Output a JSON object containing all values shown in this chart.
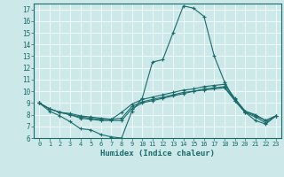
{
  "xlabel": "Humidex (Indice chaleur)",
  "xlim": [
    -0.5,
    23.5
  ],
  "ylim": [
    6,
    17.5
  ],
  "yticks": [
    6,
    7,
    8,
    9,
    10,
    11,
    12,
    13,
    14,
    15,
    16,
    17
  ],
  "xticks": [
    0,
    1,
    2,
    3,
    4,
    5,
    6,
    7,
    8,
    9,
    10,
    11,
    12,
    13,
    14,
    15,
    16,
    17,
    18,
    19,
    20,
    21,
    22,
    23
  ],
  "background_color": "#cce8e8",
  "grid_color": "#ffffff",
  "line_color": "#1a6b6b",
  "line1_x": [
    0,
    1,
    2,
    3,
    4,
    5,
    6,
    7,
    8,
    9,
    10,
    11,
    12,
    13,
    14,
    15,
    16,
    17,
    18,
    19,
    20,
    21,
    22,
    23
  ],
  "line1_y": [
    9.0,
    8.3,
    7.9,
    7.4,
    6.8,
    6.7,
    6.3,
    6.1,
    6.0,
    8.3,
    9.4,
    12.5,
    12.7,
    15.0,
    17.3,
    17.1,
    16.4,
    13.0,
    10.8,
    9.2,
    8.2,
    7.5,
    7.2,
    7.9
  ],
  "line2_x": [
    0,
    1,
    2,
    3,
    4,
    5,
    6,
    7,
    8,
    9,
    10,
    11,
    12,
    13,
    14,
    15,
    16,
    17,
    18,
    19,
    20,
    21,
    22,
    23
  ],
  "line2_y": [
    9.0,
    8.5,
    8.2,
    8.0,
    7.8,
    7.7,
    7.6,
    7.6,
    8.2,
    8.9,
    9.3,
    9.5,
    9.7,
    9.9,
    10.1,
    10.2,
    10.4,
    10.5,
    10.6,
    9.4,
    8.3,
    8.0,
    7.5,
    7.9
  ],
  "line3_x": [
    0,
    1,
    2,
    3,
    4,
    5,
    6,
    7,
    8,
    9,
    10,
    11,
    12,
    13,
    14,
    15,
    16,
    17,
    18,
    19,
    20,
    21,
    22,
    23
  ],
  "line3_y": [
    9.0,
    8.5,
    8.2,
    8.1,
    7.9,
    7.8,
    7.7,
    7.6,
    7.7,
    8.7,
    9.1,
    9.3,
    9.5,
    9.7,
    9.9,
    10.0,
    10.2,
    10.3,
    10.4,
    9.3,
    8.3,
    7.9,
    7.5,
    7.9
  ],
  "line4_x": [
    0,
    1,
    2,
    3,
    4,
    5,
    6,
    7,
    8,
    9,
    10,
    11,
    12,
    13,
    14,
    15,
    16,
    17,
    18,
    19,
    20,
    21,
    22,
    23
  ],
  "line4_y": [
    9.0,
    8.5,
    8.2,
    8.0,
    7.7,
    7.6,
    7.5,
    7.5,
    7.5,
    8.5,
    9.0,
    9.2,
    9.4,
    9.6,
    9.8,
    10.0,
    10.1,
    10.2,
    10.3,
    9.2,
    8.2,
    7.8,
    7.3,
    7.9
  ]
}
